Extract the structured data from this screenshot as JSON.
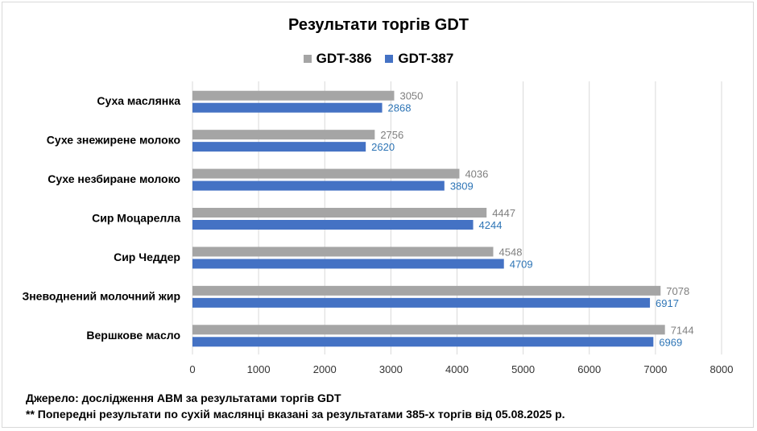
{
  "chart_data": {
    "type": "bar",
    "orientation": "horizontal",
    "title": "Результати торгів GDT",
    "xlabel": "",
    "ylabel": "",
    "xlim": [
      0,
      8000
    ],
    "ticks": [
      0,
      1000,
      2000,
      3000,
      4000,
      5000,
      6000,
      7000,
      8000
    ],
    "grid": true,
    "legend_position": "top",
    "categories": [
      "Суха маслянка",
      "Сухе знежирене молоко",
      "Сухе незбиране молоко",
      "Сир Моцарелла",
      "Сир Чеддер",
      "Зневоднений молочний жир",
      "Вершкове масло"
    ],
    "series": [
      {
        "name": "GDT-386",
        "color": "#a5a5a5",
        "label_color": "#7f7f7f",
        "values": [
          3050,
          2756,
          4036,
          4447,
          4548,
          7078,
          7144
        ]
      },
      {
        "name": "GDT-387",
        "color": "#4472c4",
        "label_color": "#2e75b6",
        "values": [
          2868,
          2620,
          3809,
          4244,
          4709,
          6917,
          6969
        ]
      }
    ]
  },
  "footer": {
    "source": "Джерело: дослідження АВМ за результатами торгів GDT",
    "note": "** Попередні результати по сухій маслянці вказані за результатами 385-х торгів від 05.08.2025 р."
  }
}
